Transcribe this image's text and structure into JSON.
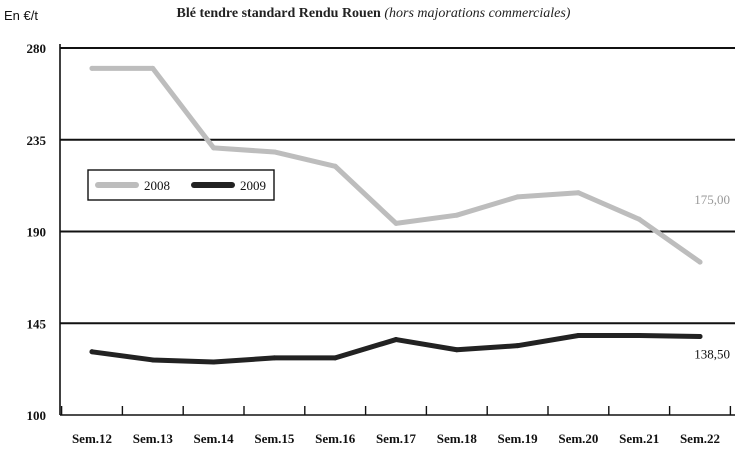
{
  "chart_data": {
    "type": "line",
    "title": "Blé tendre standard Rendu Rouen",
    "subtitle": "(hors majorations commerciales)",
    "ylabel": "En €/t",
    "xlabel": "",
    "ylim": [
      100,
      280
    ],
    "yticks": [
      "280",
      "235",
      "190",
      "145",
      "100"
    ],
    "categories": [
      "Sem.12",
      "Sem.13",
      "Sem.14",
      "Sem.15",
      "Sem.16",
      "Sem.17",
      "Sem.18",
      "Sem.19",
      "Sem.20",
      "Sem.21",
      "Sem.22"
    ],
    "grid": true,
    "legend_position": "upper-left inside",
    "series": [
      {
        "name": "2008",
        "color": "#bdbdbd",
        "values": [
          270,
          270,
          231,
          229,
          222,
          194,
          198,
          207,
          209,
          196,
          175
        ]
      },
      {
        "name": "2009",
        "color": "#222222",
        "values": [
          131,
          127,
          126,
          128,
          128,
          137,
          132,
          134,
          139,
          139,
          138.5
        ]
      }
    ],
    "annotations": [
      {
        "text": "175,00",
        "series": "2008"
      },
      {
        "text": "138,50",
        "series": "2009"
      }
    ]
  }
}
